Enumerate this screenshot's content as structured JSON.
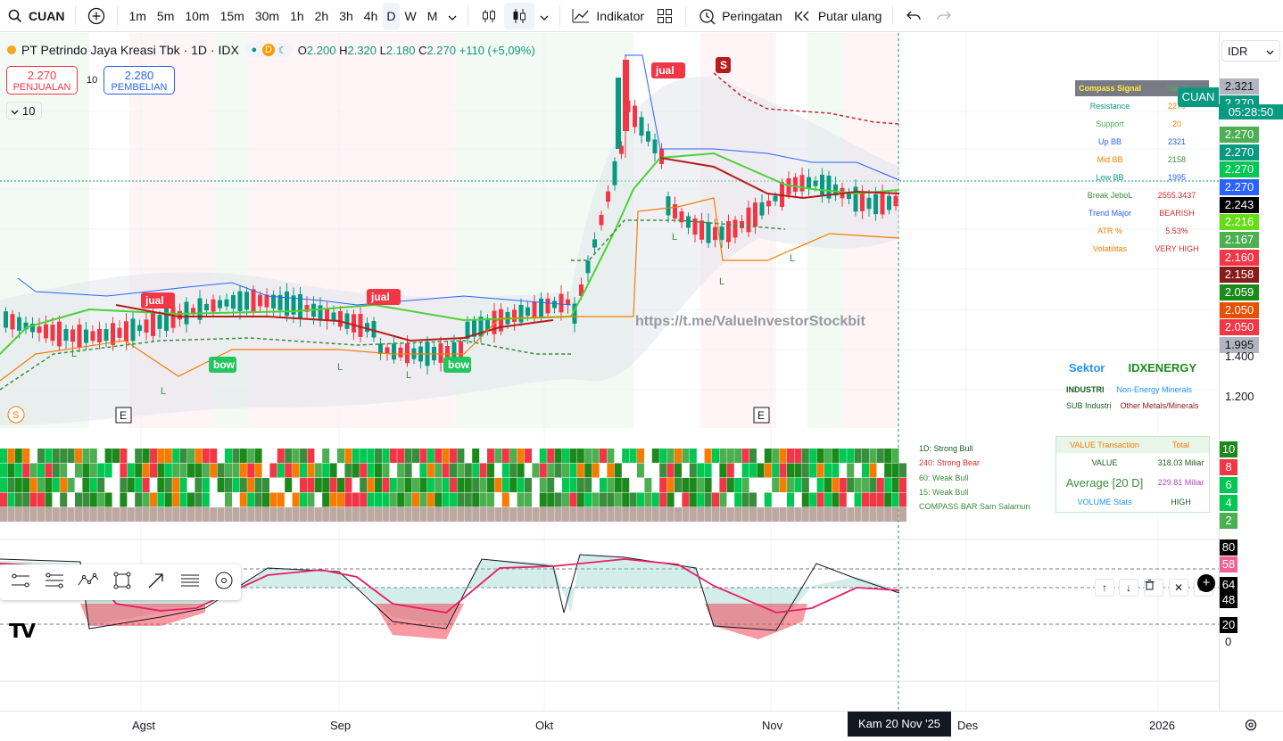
{
  "toolbar": {
    "symbol": "CUAN",
    "timeframes": [
      "1m",
      "5m",
      "10m",
      "15m",
      "30m",
      "1h",
      "2h",
      "3h",
      "4h",
      "D",
      "W",
      "M"
    ],
    "active_timeframe": "D",
    "indicators_label": "Indikator",
    "alerts_label": "Peringatan",
    "replay_label": "Putar ulang"
  },
  "legend": {
    "title": "PT Petrindo Jaya Kreasi Tbk · 1D · IDX",
    "badge_d": "D",
    "o_label": "O",
    "o": "2.200",
    "h_label": "H",
    "h": "2.320",
    "l_label": "L",
    "l": "2.180",
    "c_label": "C",
    "c": "2.270",
    "change": "+110 (+5,09%)"
  },
  "trade": {
    "sell_price": "2.270",
    "sell_label": "PENJUALAN",
    "spread": "10",
    "buy_price": "2.280",
    "buy_label": "PEMBELIAN",
    "qty": "10"
  },
  "compass": {
    "header1": "Compass Signal",
    "header2": "Value",
    "rows": [
      {
        "label": "Resistance",
        "value": "2270",
        "color": "#089981",
        "vcolor": "#f57c00"
      },
      {
        "label": "Support",
        "value": "20",
        "color": "#4caf50",
        "vcolor": "#f57c00"
      },
      {
        "label": "Up BB",
        "value": "2321",
        "color": "#2962ff",
        "vcolor": "#2962ff"
      },
      {
        "label": "Mid BB",
        "value": "2158",
        "color": "#f57c00",
        "vcolor": "#388e3c"
      },
      {
        "label": "Low BB",
        "value": "1995",
        "color": "#089981",
        "vcolor": "#2962ff"
      },
      {
        "label": "Break JeboL",
        "value": "2555.3437",
        "color": "#388e3c",
        "vcolor": "#d32f2f"
      },
      {
        "label": "Trend Major",
        "value": "BEARISH",
        "color": "#2962ff",
        "vcolor": "#d32f2f"
      },
      {
        "label": "ATR %",
        "value": "5.53%",
        "color": "#f57c00",
        "vcolor": "#d32f2f"
      },
      {
        "label": "Volatilitas",
        "value": "VERY HIGH",
        "color": "#f57c00",
        "vcolor": "#d32f2f"
      }
    ]
  },
  "sector": {
    "sektor_label": "Sektor",
    "sektor_value": "IDXENERGY",
    "industri_label": "INDUSTRI",
    "industri_value": "Non-Energy Minerals",
    "sub_label": "SUB Industri",
    "sub_value": "Other Metals/Minerals"
  },
  "watermark": "https://t.me/ValueInvestorStockbit",
  "signals": {
    "jual": "jual",
    "bow": "bow",
    "s": "S",
    "e": "E",
    "l": "L"
  },
  "compass_bar": {
    "legend": [
      "1D: Strong Bull",
      "240: Strong Bear",
      "60: Weak Bull",
      "15: Weak Bull",
      "COMPASS BAR Sam Salamun"
    ],
    "legend_colors": [
      "#1b5e20",
      "#d32f2f",
      "#388e3c",
      "#388e3c",
      "#388e3c"
    ]
  },
  "value_transaction": {
    "header1": "VALUE Transaction",
    "header2": "Total",
    "value_label": "VALUE",
    "value": "318.03 Miliar",
    "avg_label": "Average [20 D]",
    "avg": "229.81 Miliar",
    "vol_label": "VOLUME Stats",
    "vol": "HIGH"
  },
  "price_scale": {
    "currency": "IDR",
    "tag_cuan": "CUAN",
    "countdown": "05:28:50",
    "labels": [
      {
        "v": "2.321",
        "bg": "#b2b5be",
        "fg": "#131722",
        "y": 51
      },
      {
        "v": "2.270",
        "bg": "#089981",
        "fg": "#ffffff",
        "y": 70
      },
      {
        "v": "2.270",
        "bg": "#4caf50",
        "fg": "#ffffff",
        "y": 105
      },
      {
        "v": "2.270",
        "bg": "#089981",
        "fg": "#ffffff",
        "y": 125
      },
      {
        "v": "2.270",
        "bg": "#00c853",
        "fg": "#ffffff",
        "y": 144
      },
      {
        "v": "2.270",
        "bg": "#2962ff",
        "fg": "#ffffff",
        "y": 164
      },
      {
        "v": "2.243",
        "bg": "#000000",
        "fg": "#ffffff",
        "y": 184
      },
      {
        "v": "2.216",
        "bg": "#64dd17",
        "fg": "#ffffff",
        "y": 203
      },
      {
        "v": "2.167",
        "bg": "#4caf50",
        "fg": "#ffffff",
        "y": 223
      },
      {
        "v": "2.160",
        "bg": "#f23645",
        "fg": "#ffffff",
        "y": 243
      },
      {
        "v": "2.158",
        "bg": "#8b1a1a",
        "fg": "#ffffff",
        "y": 262
      },
      {
        "v": "2.059",
        "bg": "#1b8a1b",
        "fg": "#ffffff",
        "y": 282
      },
      {
        "v": "2.050",
        "bg": "#e65100",
        "fg": "#ffffff",
        "y": 302
      },
      {
        "v": "2.050",
        "bg": "#f23645",
        "fg": "#ffffff",
        "y": 321
      },
      {
        "v": "1.995",
        "bg": "#b2b5be",
        "fg": "#131722",
        "y": 341
      }
    ],
    "text_ticks": [
      {
        "v": "1.400",
        "y": 355
      },
      {
        "v": "1.200",
        "y": 400
      }
    ],
    "bar_scale": [
      {
        "v": "10",
        "bg": "#1b8a1b",
        "y": 458
      },
      {
        "v": "8",
        "bg": "#f23645",
        "y": 478
      },
      {
        "v": "6",
        "bg": "#00c853",
        "y": 498
      },
      {
        "v": "4",
        "bg": "#00c853",
        "y": 518
      },
      {
        "v": "2",
        "bg": "#4caf50",
        "y": 538
      }
    ],
    "osc_scale": [
      {
        "v": "80",
        "bg": "#000000",
        "fg": "#ffffff",
        "y": 568
      },
      {
        "v": "58",
        "bg": "#f06292",
        "fg": "#ffffff",
        "y": 587
      },
      {
        "v": "64",
        "bg": "#000000",
        "fg": "#ffffff",
        "y": 610
      },
      {
        "v": "48",
        "bg": "#000000",
        "fg": "#ffffff",
        "y": 627
      },
      {
        "v": "20",
        "bg": "#000000",
        "fg": "#ffffff",
        "y": 655
      }
    ],
    "osc_text": [
      {
        "v": "0",
        "y": 675
      }
    ]
  },
  "time_axis": {
    "labels": [
      {
        "t": "Agst",
        "x": 148
      },
      {
        "t": "Sep",
        "x": 370
      },
      {
        "t": "Okt",
        "x": 600
      },
      {
        "t": "Nov",
        "x": 854
      },
      {
        "t": "Des",
        "x": 1073
      },
      {
        "t": "2026",
        "x": 1288
      }
    ],
    "crosshair_date": "Kam 20 Nov '25"
  }
}
